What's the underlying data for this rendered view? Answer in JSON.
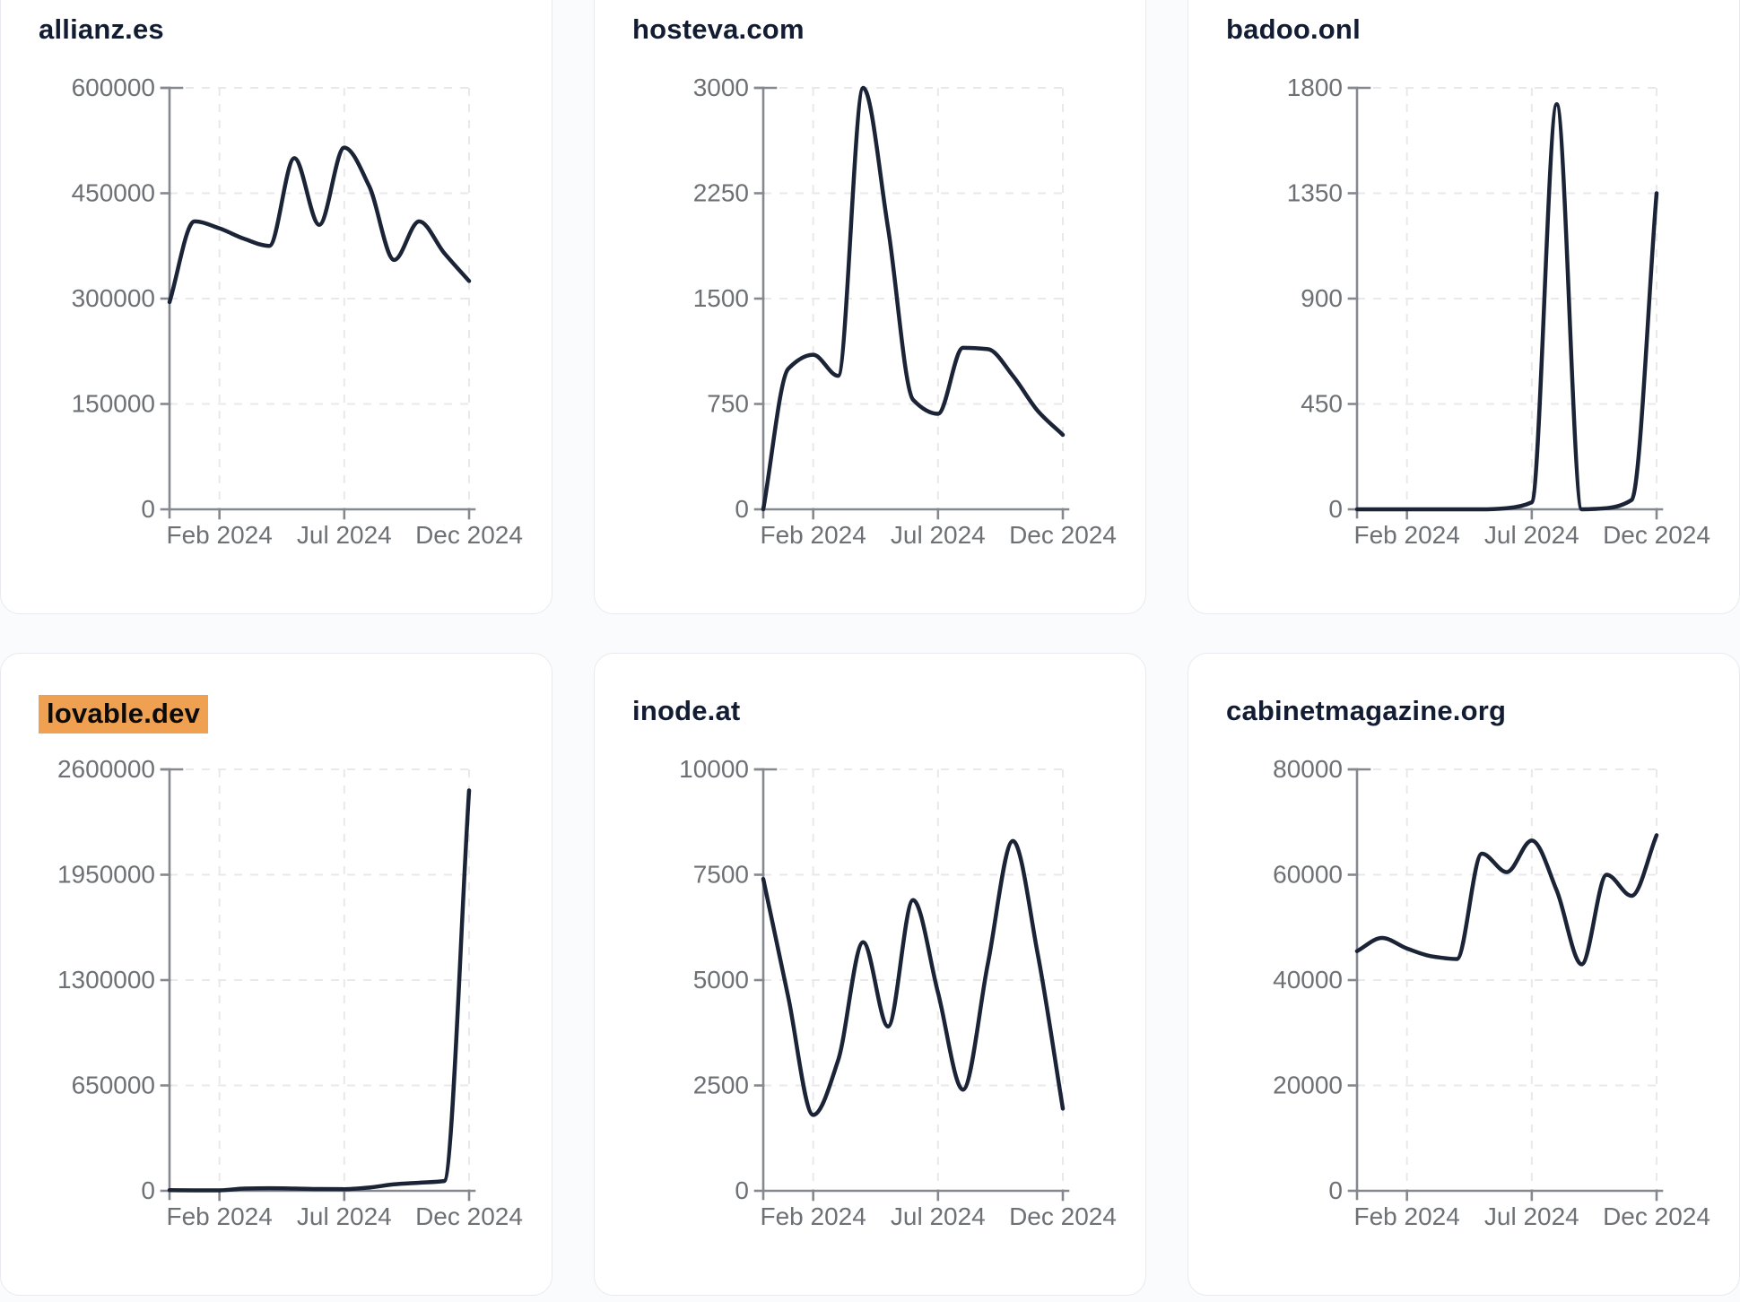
{
  "style": {
    "page_background": "#fafbfc",
    "card_background": "#ffffff",
    "card_border": "#e8eaef",
    "title_color": "#121c33",
    "line_color": "#1b2337",
    "axis_color": "#85898f",
    "tick_label_color": "#6d7175",
    "grid_color": "#e9e9ec",
    "highlight_background": "#f0a051",
    "highlight_text": "#0b0b0b"
  },
  "chart_data": [
    {
      "type": "line",
      "title": "allianz.es",
      "highlighted": false,
      "x": [
        "Dec 2023",
        "Jan 2024",
        "Feb 2024",
        "Mar 2024",
        "Apr 2024",
        "May 2024",
        "Jun 2024",
        "Jul 2024",
        "Aug 2024",
        "Sep 2024",
        "Oct 2024",
        "Nov 2024",
        "Dec 2024"
      ],
      "values": [
        295000,
        410000,
        400000,
        385000,
        375000,
        500000,
        405000,
        515000,
        460000,
        355000,
        410000,
        365000,
        325000
      ],
      "y_ticks": [
        0,
        150000,
        300000,
        450000,
        600000
      ],
      "ylim": [
        0,
        600000
      ],
      "x_tick_labels": [
        "Feb 2024",
        "Jul 2024",
        "Dec 2024"
      ],
      "x_tick_indices": [
        2,
        7,
        12
      ],
      "grid": true,
      "legend": "none"
    },
    {
      "type": "line",
      "title": "hosteva.com",
      "highlighted": false,
      "x": [
        "Dec 2023",
        "Jan 2024",
        "Feb 2024",
        "Mar 2024",
        "Apr 2024",
        "May 2024",
        "Jun 2024",
        "Jul 2024",
        "Aug 2024",
        "Sep 2024",
        "Oct 2024",
        "Nov 2024",
        "Dec 2024"
      ],
      "values": [
        0,
        1000,
        1100,
        950,
        3000,
        2000,
        780,
        680,
        1150,
        1140,
        950,
        700,
        530
      ],
      "y_ticks": [
        0,
        750,
        1500,
        2250,
        3000
      ],
      "ylim": [
        0,
        3000
      ],
      "x_tick_labels": [
        "Feb 2024",
        "Jul 2024",
        "Dec 2024"
      ],
      "x_tick_indices": [
        2,
        7,
        12
      ],
      "grid": true,
      "legend": "none"
    },
    {
      "type": "line",
      "title": "badoo.onl",
      "highlighted": false,
      "x": [
        "Dec 2023",
        "Jan 2024",
        "Feb 2024",
        "Mar 2024",
        "Apr 2024",
        "May 2024",
        "Jun 2024",
        "Jul 2024",
        "Aug 2024",
        "Sep 2024",
        "Oct 2024",
        "Nov 2024",
        "Dec 2024"
      ],
      "values": [
        0,
        0,
        0,
        0,
        0,
        0,
        5,
        30,
        1730,
        0,
        5,
        40,
        1350
      ],
      "y_ticks": [
        0,
        450,
        900,
        1350,
        1800
      ],
      "ylim": [
        0,
        1800
      ],
      "x_tick_labels": [
        "Feb 2024",
        "Jul 2024",
        "Dec 2024"
      ],
      "x_tick_indices": [
        2,
        7,
        12
      ],
      "grid": true,
      "legend": "none"
    },
    {
      "type": "line",
      "title": "lovable.dev",
      "highlighted": true,
      "x": [
        "Dec 2023",
        "Jan 2024",
        "Feb 2024",
        "Mar 2024",
        "Apr 2024",
        "May 2024",
        "Jun 2024",
        "Jul 2024",
        "Aug 2024",
        "Sep 2024",
        "Oct 2024",
        "Nov 2024",
        "Dec 2024"
      ],
      "values": [
        4000,
        3000,
        3000,
        14000,
        16000,
        14000,
        11000,
        10000,
        20000,
        40000,
        50000,
        60000,
        2470000
      ],
      "y_ticks": [
        0,
        650000,
        1300000,
        1950000,
        2600000
      ],
      "ylim": [
        0,
        2600000
      ],
      "x_tick_labels": [
        "Feb 2024",
        "Jul 2024",
        "Dec 2024"
      ],
      "x_tick_indices": [
        2,
        7,
        12
      ],
      "grid": true,
      "legend": "none"
    },
    {
      "type": "line",
      "title": "inode.at",
      "highlighted": false,
      "x": [
        "Dec 2023",
        "Jan 2024",
        "Feb 2024",
        "Mar 2024",
        "Apr 2024",
        "May 2024",
        "Jun 2024",
        "Jul 2024",
        "Aug 2024",
        "Sep 2024",
        "Oct 2024",
        "Nov 2024",
        "Dec 2024"
      ],
      "values": [
        7400,
        4600,
        1800,
        3100,
        5900,
        3900,
        6900,
        4700,
        2400,
        5400,
        8300,
        5600,
        1950
      ],
      "y_ticks": [
        0,
        2500,
        5000,
        7500,
        10000
      ],
      "ylim": [
        0,
        10000
      ],
      "x_tick_labels": [
        "Feb 2024",
        "Jul 2024",
        "Dec 2024"
      ],
      "x_tick_indices": [
        2,
        7,
        12
      ],
      "grid": true,
      "legend": "none"
    },
    {
      "type": "line",
      "title": "cabinetmagazine.org",
      "highlighted": false,
      "x": [
        "Dec 2023",
        "Jan 2024",
        "Feb 2024",
        "Mar 2024",
        "Apr 2024",
        "May 2024",
        "Jun 2024",
        "Jul 2024",
        "Aug 2024",
        "Sep 2024",
        "Oct 2024",
        "Nov 2024",
        "Dec 2024"
      ],
      "values": [
        45500,
        48000,
        46000,
        44500,
        44000,
        64000,
        60500,
        66500,
        57000,
        43000,
        60000,
        56000,
        67500
      ],
      "y_ticks": [
        0,
        20000,
        40000,
        60000,
        80000
      ],
      "ylim": [
        0,
        80000
      ],
      "x_tick_labels": [
        "Feb 2024",
        "Jul 2024",
        "Dec 2024"
      ],
      "x_tick_indices": [
        2,
        7,
        12
      ],
      "grid": true,
      "legend": "none"
    }
  ]
}
